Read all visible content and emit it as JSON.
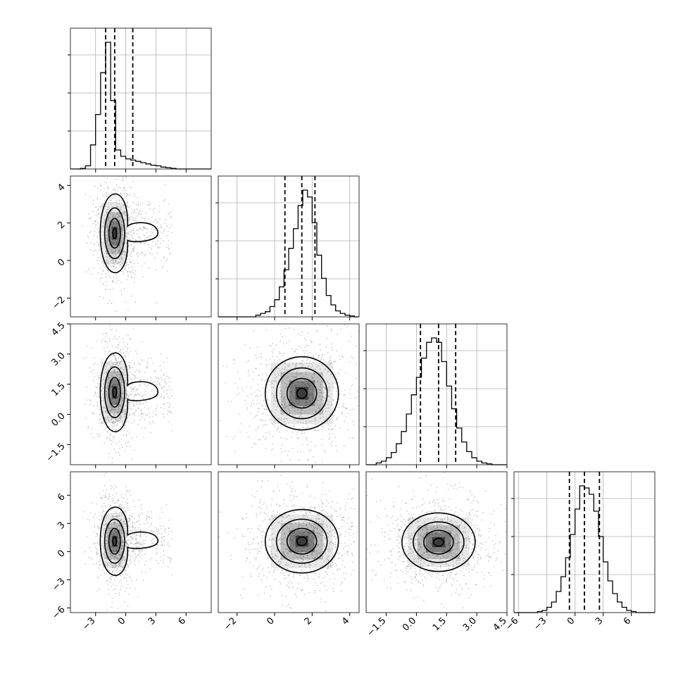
{
  "chart_data": {
    "type": "corner",
    "parameters": 4,
    "style": {
      "line_color": "#000000",
      "scatter_color": "#9a9a9a",
      "grid_color": "#b0b0b0",
      "grid": true
    },
    "quantiles": [
      0.16,
      0.5,
      0.84
    ],
    "ranges": [
      [
        -5.5,
        8.5
      ],
      [
        -3.0,
        4.5
      ],
      [
        -2.5,
        4.5
      ],
      [
        -6.5,
        8.5
      ]
    ],
    "ticks": [
      {
        "values": [
          -3,
          0,
          3,
          6
        ],
        "labels": [
          "−3",
          "0",
          "3",
          "6"
        ]
      },
      {
        "values": [
          -2,
          0,
          2,
          4
        ],
        "labels": [
          "−2",
          "0",
          "2",
          "4"
        ]
      },
      {
        "values": [
          -1.5,
          0,
          1.5,
          3,
          4.5
        ],
        "labels": [
          "−1.5",
          "0.0",
          "1.5",
          "3.0",
          "4.5"
        ]
      },
      {
        "values": [
          -6,
          -3,
          0,
          3,
          6
        ],
        "labels": [
          "−6",
          "−3",
          "0",
          "3",
          "6"
        ]
      }
    ],
    "marginals": [
      {
        "parameter": 0,
        "bin_edges": [
          -5.5,
          -5.0,
          -4.5,
          -4.0,
          -3.5,
          -3.0,
          -2.5,
          -2.0,
          -1.5,
          -1.0,
          -0.5,
          0.0,
          0.5,
          1.0,
          1.5,
          2.0,
          2.5,
          3.0,
          3.5,
          4.0,
          4.5,
          5.0,
          5.5,
          6.0,
          6.5,
          7.0,
          7.5,
          8.0,
          8.5
        ],
        "counts": [
          0,
          0,
          1,
          5,
          38,
          86,
          152,
          200,
          108,
          30,
          20,
          16,
          14,
          12,
          10,
          8,
          6,
          5,
          3,
          2,
          1,
          0,
          0,
          0,
          0,
          0,
          0,
          0
        ],
        "quantile_values": [
          -2.0,
          -1.1,
          0.7
        ]
      },
      {
        "parameter": 1,
        "bin_edges": [
          -3.0,
          -2.75,
          -2.5,
          -2.25,
          -2.0,
          -1.75,
          -1.5,
          -1.25,
          -1.0,
          -0.75,
          -0.5,
          -0.25,
          0.0,
          0.25,
          0.5,
          0.75,
          1.0,
          1.25,
          1.5,
          1.75,
          2.0,
          2.25,
          2.5,
          2.75,
          3.0,
          3.25,
          3.5,
          3.75,
          4.0,
          4.25,
          4.5
        ],
        "counts": [
          0,
          0,
          0,
          0,
          0,
          0,
          0,
          0,
          2,
          4,
          6,
          12,
          20,
          35,
          55,
          80,
          103,
          130,
          148,
          140,
          110,
          72,
          45,
          25,
          14,
          7,
          4,
          2,
          1,
          0
        ],
        "quantile_values": [
          0.55,
          1.45,
          2.15
        ]
      },
      {
        "parameter": 2,
        "bin_edges": [
          -2.5,
          -2.25,
          -2.0,
          -1.75,
          -1.5,
          -1.25,
          -1.0,
          -0.75,
          -0.5,
          -0.25,
          0.0,
          0.25,
          0.5,
          0.75,
          1.0,
          1.25,
          1.5,
          1.75,
          2.0,
          2.25,
          2.5,
          2.75,
          3.0,
          3.25,
          3.5,
          3.75,
          4.0,
          4.25,
          4.5
        ],
        "counts": [
          0,
          0,
          2,
          4,
          8,
          14,
          24,
          38,
          58,
          80,
          100,
          122,
          140,
          145,
          140,
          118,
          90,
          64,
          42,
          26,
          15,
          8,
          4,
          2,
          1,
          0,
          0,
          0
        ],
        "quantile_values": [
          0.2,
          1.1,
          1.95
        ]
      },
      {
        "parameter": 3,
        "bin_edges": [
          -6.5,
          -6.0,
          -5.5,
          -5.0,
          -4.5,
          -4.0,
          -3.5,
          -3.0,
          -2.5,
          -2.0,
          -1.5,
          -1.0,
          -0.5,
          0.0,
          0.5,
          1.0,
          1.5,
          2.0,
          2.5,
          3.0,
          3.5,
          4.0,
          4.5,
          5.0,
          5.5,
          6.0,
          6.5,
          7.0,
          7.5,
          8.0,
          8.5
        ],
        "counts": [
          0,
          0,
          0,
          0,
          0,
          1,
          2,
          5,
          10,
          20,
          34,
          52,
          74,
          98,
          120,
          118,
          112,
          96,
          72,
          48,
          30,
          18,
          10,
          5,
          2,
          1,
          0,
          0,
          0,
          0
        ],
        "quantile_values": [
          -0.6,
          1.0,
          2.6
        ]
      }
    ],
    "joint_2d": [
      {
        "x": 0,
        "y": 1,
        "center": [
          -1.1,
          1.45
        ],
        "sigma": [
          0.55,
          0.75
        ],
        "tail_to_x": 3.2
      },
      {
        "x": 0,
        "y": 2,
        "center": [
          -1.1,
          1.1
        ],
        "sigma": [
          0.55,
          0.7
        ],
        "tail_to_x": 3.2
      },
      {
        "x": 1,
        "y": 2,
        "center": [
          1.45,
          1.05
        ],
        "sigma": [
          0.75,
          0.7
        ],
        "tail_to_x": null
      },
      {
        "x": 0,
        "y": 3,
        "center": [
          -1.1,
          1.1
        ],
        "sigma": [
          0.55,
          1.3
        ],
        "tail_to_x": 3.2
      },
      {
        "x": 1,
        "y": 3,
        "center": [
          1.45,
          1.1
        ],
        "sigma": [
          0.75,
          1.3
        ],
        "tail_to_x": null
      },
      {
        "x": 2,
        "y": 3,
        "center": [
          1.1,
          1.0
        ],
        "sigma": [
          0.7,
          1.2
        ],
        "tail_to_x": null
      }
    ]
  }
}
